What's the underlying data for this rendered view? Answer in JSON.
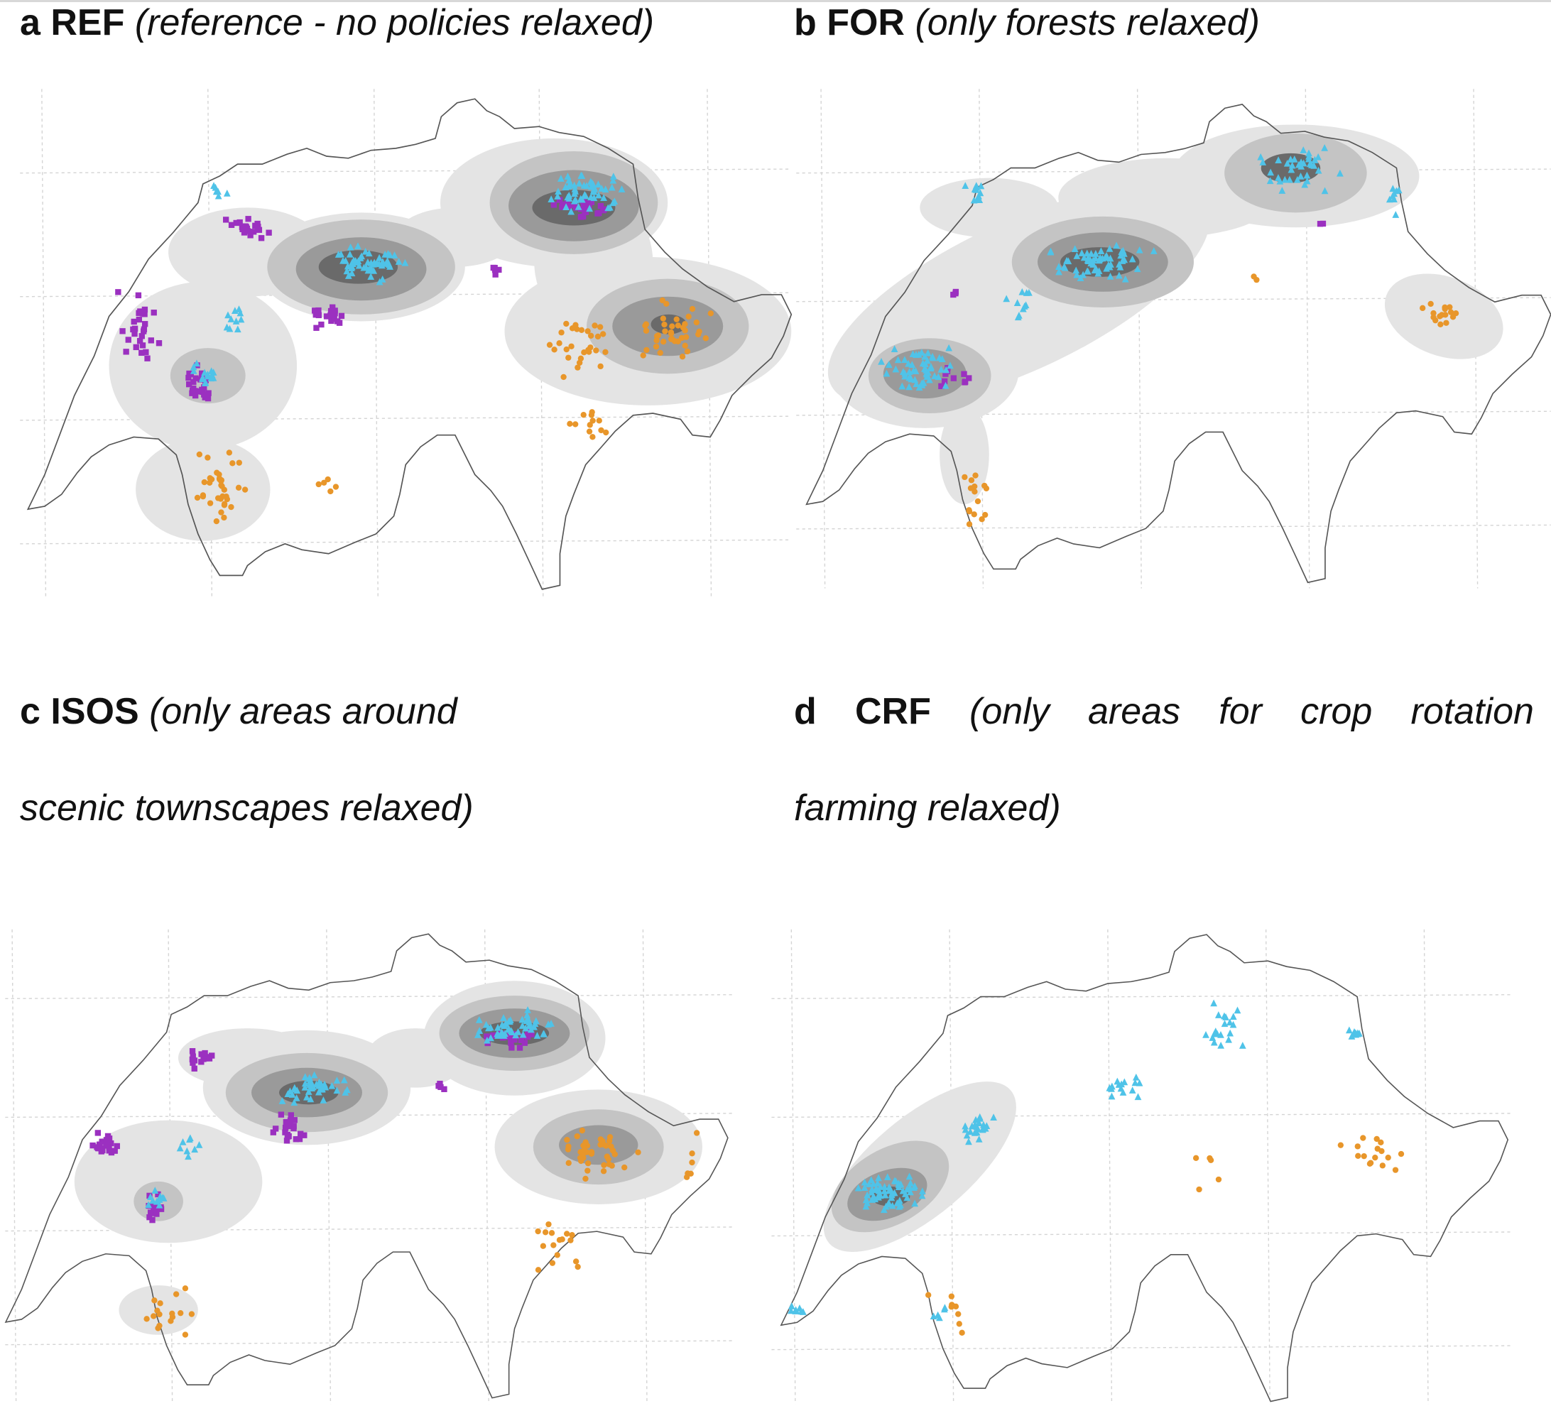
{
  "panels": [
    {
      "letter": "a",
      "code": "REF",
      "desc": "(reference - no policies relaxed)"
    },
    {
      "letter": "b",
      "code": "FOR",
      "desc": "(only forests relaxed)"
    },
    {
      "letter": "c",
      "code": "ISOS",
      "desc_line1": "(only areas around",
      "desc_line2": "scenic townscapes relaxed)"
    },
    {
      "letter": "d",
      "code": "CRF",
      "desc_words": [
        "(only",
        "areas",
        "for",
        "crop",
        "rotation"
      ],
      "desc_line2": "farming relaxed)"
    }
  ],
  "colors": {
    "purple_squares": "#9b30c0",
    "cyan_triangles": "#4fc3e8",
    "orange_circles": "#e8962a",
    "density_levels": [
      "#e4e4e4",
      "#c4c4c4",
      "#9a9a9a",
      "#6a6a6a"
    ],
    "border": "#555555",
    "grid": "#d4d4d4"
  }
}
